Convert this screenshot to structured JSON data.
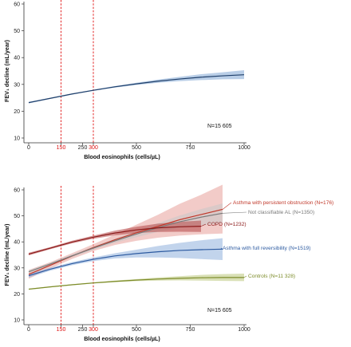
{
  "chart_data": [
    {
      "type": "line",
      "xlabel": "Blood eosinophils (cells/µL)",
      "ylabel": "FEV₁ decline (mL/year)",
      "xlim": [
        0,
        1000
      ],
      "ylim": [
        10,
        60
      ],
      "xticks": [
        0,
        150,
        250,
        300,
        500,
        750,
        1000
      ],
      "xticks_red": [
        150,
        300
      ],
      "yticks": [
        10,
        20,
        30,
        40,
        50,
        60
      ],
      "reference_lines": [
        150,
        300
      ],
      "annotation": "N=15 605",
      "series": [
        {
          "color": "#1f3f6a",
          "band_color": "#7fa6d4",
          "x": [
            0,
            100,
            200,
            300,
            400,
            500,
            600,
            700,
            800,
            900,
            1000
          ],
          "y": [
            23.2,
            24.8,
            26.4,
            27.8,
            29.1,
            30.2,
            31.2,
            32.0,
            32.7,
            33.2,
            33.6
          ],
          "lower": [
            22.9,
            24.6,
            26.2,
            27.6,
            28.8,
            29.8,
            30.6,
            31.2,
            31.6,
            31.9,
            32.0
          ],
          "upper": [
            23.5,
            25.0,
            26.6,
            28.0,
            29.4,
            30.6,
            31.8,
            32.8,
            33.8,
            34.5,
            35.3
          ]
        }
      ]
    },
    {
      "type": "line",
      "xlabel": "Blood eosinophils (cells/µL)",
      "ylabel": "FEV₁ decline (mL/year)",
      "xlim": [
        0,
        1000
      ],
      "ylim": [
        10,
        60
      ],
      "xticks": [
        0,
        150,
        250,
        300,
        500,
        750,
        1000
      ],
      "xticks_red": [
        150,
        300
      ],
      "yticks": [
        10,
        20,
        30,
        40,
        50,
        60
      ],
      "reference_lines": [
        150,
        300
      ],
      "annotation": "N=15 605",
      "series": [
        {
          "name": "Asthma with persistent obstruction (N=176)",
          "color": "#c0392b",
          "band_color": "#e8a09a",
          "x": [
            0,
            100,
            200,
            300,
            400,
            500,
            600,
            700,
            800,
            900
          ],
          "y": [
            27.5,
            31.0,
            34.5,
            37.8,
            40.8,
            43.5,
            46.0,
            48.5,
            50.5,
            52.5
          ],
          "lower": [
            25.8,
            29.8,
            33.4,
            36.5,
            38.8,
            40.4,
            41.6,
            42.4,
            42.9,
            43.2
          ],
          "upper": [
            29.2,
            32.2,
            35.6,
            39.1,
            42.8,
            46.6,
            50.4,
            54.6,
            58.1,
            62.0
          ]
        },
        {
          "name": "Not classifiable AL (N=1350)",
          "color": "#7a7a7a",
          "band_color": "#c8c8c8",
          "x": [
            0,
            100,
            200,
            300,
            400,
            500,
            600,
            700,
            800,
            900
          ],
          "y": [
            28.5,
            31.5,
            34.6,
            37.6,
            40.4,
            43.0,
            45.5,
            47.7,
            49.5,
            51.0
          ],
          "lower": [
            27.9,
            31.0,
            34.1,
            37.0,
            39.6,
            41.8,
            43.8,
            45.3,
            46.4,
            47.2
          ],
          "upper": [
            29.1,
            32.0,
            35.1,
            38.2,
            41.2,
            44.2,
            47.2,
            50.1,
            52.6,
            54.8
          ]
        },
        {
          "name": "COPD (N=1232)",
          "color": "#8b1a1a",
          "band_color": "#b54747",
          "x": [
            0,
            100,
            200,
            300,
            400,
            500,
            600,
            700,
            800
          ],
          "y": [
            35.3,
            37.6,
            39.9,
            41.8,
            43.4,
            44.6,
            45.4,
            45.8,
            46.0
          ],
          "lower": [
            34.8,
            37.2,
            39.4,
            41.2,
            42.5,
            43.4,
            43.8,
            43.9,
            43.8
          ],
          "upper": [
            35.8,
            38.0,
            40.4,
            42.4,
            44.3,
            45.8,
            47.0,
            47.7,
            48.2
          ]
        },
        {
          "name": "Asthma with full reversibility (N=1519)",
          "color": "#2c5aa0",
          "band_color": "#8fb0dd",
          "x": [
            0,
            100,
            200,
            300,
            400,
            500,
            600,
            700,
            800,
            900
          ],
          "y": [
            27.0,
            29.5,
            31.6,
            33.3,
            34.6,
            35.5,
            36.2,
            36.7,
            37.0,
            37.2
          ],
          "lower": [
            26.3,
            28.9,
            31.0,
            32.6,
            33.6,
            34.0,
            34.0,
            33.8,
            33.4,
            33.0
          ],
          "upper": [
            27.7,
            30.1,
            32.2,
            34.0,
            35.6,
            37.0,
            38.4,
            39.6,
            40.6,
            41.4
          ]
        },
        {
          "name": "Controls (N=11 328)",
          "color": "#7d8c2a",
          "band_color": "#b9c77a",
          "x": [
            0,
            100,
            200,
            300,
            400,
            500,
            600,
            700,
            800,
            900,
            1000
          ],
          "y": [
            21.8,
            22.7,
            23.5,
            24.2,
            24.8,
            25.3,
            25.7,
            26.0,
            26.2,
            26.3,
            26.3
          ],
          "lower": [
            21.6,
            22.5,
            23.3,
            24.0,
            24.5,
            24.9,
            25.1,
            25.2,
            25.1,
            25.0,
            24.9
          ],
          "upper": [
            22.0,
            22.9,
            23.7,
            24.4,
            25.1,
            25.7,
            26.3,
            26.8,
            27.3,
            27.6,
            27.8
          ]
        }
      ]
    }
  ]
}
